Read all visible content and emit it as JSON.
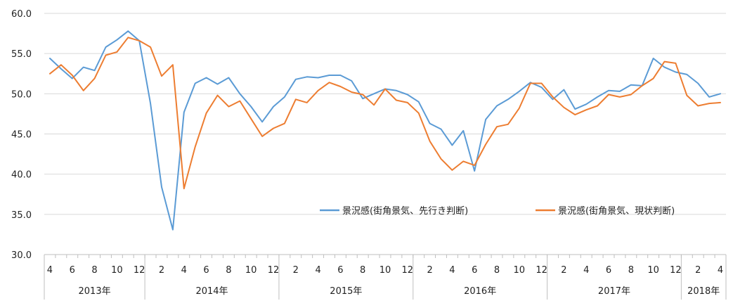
{
  "chart_data": {
    "type": "line",
    "title": "",
    "xlabel": "",
    "ylabel": "",
    "ylim": [
      30.0,
      60.0
    ],
    "y_ticks": [
      "30.0",
      "35.0",
      "40.0",
      "45.0",
      "50.0",
      "55.0",
      "60.0"
    ],
    "grid": true,
    "legend_position": "inside-lower-right",
    "x": [
      "2013-04",
      "2013-05",
      "2013-06",
      "2013-07",
      "2013-08",
      "2013-09",
      "2013-10",
      "2013-11",
      "2013-12",
      "2014-01",
      "2014-02",
      "2014-03",
      "2014-04",
      "2014-05",
      "2014-06",
      "2014-07",
      "2014-08",
      "2014-09",
      "2014-10",
      "2014-11",
      "2014-12",
      "2015-01",
      "2015-02",
      "2015-03",
      "2015-04",
      "2015-05",
      "2015-06",
      "2015-07",
      "2015-08",
      "2015-09",
      "2015-10",
      "2015-11",
      "2015-12",
      "2016-01",
      "2016-02",
      "2016-03",
      "2016-04",
      "2016-05",
      "2016-06",
      "2016-07",
      "2016-08",
      "2016-09",
      "2016-10",
      "2016-11",
      "2016-12",
      "2017-01",
      "2017-02",
      "2017-03",
      "2017-04",
      "2017-05",
      "2017-06",
      "2017-07",
      "2017-08",
      "2017-09",
      "2017-10",
      "2017-11",
      "2017-12",
      "2018-01",
      "2018-02",
      "2018-03",
      "2018-04"
    ],
    "x_tick_labels": [
      "4",
      "6",
      "8",
      "10",
      "12",
      "2",
      "4",
      "6",
      "8",
      "10",
      "12",
      "2",
      "4",
      "6",
      "8",
      "10",
      "12",
      "2",
      "4",
      "6",
      "8",
      "10",
      "12",
      "2",
      "4",
      "6",
      "8",
      "10",
      "12",
      "2",
      "4"
    ],
    "x_tick_months": [
      "2013-04",
      "2013-06",
      "2013-08",
      "2013-10",
      "2013-12",
      "2014-02",
      "2014-04",
      "2014-06",
      "2014-08",
      "2014-10",
      "2014-12",
      "2015-02",
      "2015-04",
      "2015-06",
      "2015-08",
      "2015-10",
      "2015-12",
      "2016-02",
      "2016-04",
      "2016-06",
      "2016-08",
      "2016-10",
      "2016-12",
      "2017-02",
      "2017-04",
      "2017-06",
      "2017-08",
      "2017-10",
      "2017-12",
      "2018-02",
      "2018-04"
    ],
    "year_groups": [
      {
        "label": "2013年",
        "first": "2013-04",
        "last": "2013-12"
      },
      {
        "label": "2014年",
        "first": "2014-01",
        "last": "2014-12"
      },
      {
        "label": "2015年",
        "first": "2015-01",
        "last": "2015-12"
      },
      {
        "label": "2016年",
        "first": "2016-01",
        "last": "2016-12"
      },
      {
        "label": "2017年",
        "first": "2017-01",
        "last": "2017-12"
      },
      {
        "label": "2018年",
        "first": "2018-01",
        "last": "2018-04"
      }
    ],
    "series": [
      {
        "name": "景況感(街角景気、先行き判断)",
        "color": "#5B9BD5",
        "values": [
          54.4,
          53.1,
          51.9,
          53.3,
          52.9,
          55.8,
          56.7,
          57.8,
          56.6,
          48.8,
          38.4,
          33.1,
          47.7,
          51.3,
          52.0,
          51.2,
          52.0,
          50.0,
          48.4,
          46.5,
          48.4,
          49.6,
          51.8,
          52.1,
          52.0,
          52.3,
          52.3,
          51.6,
          49.4,
          50.0,
          50.6,
          50.4,
          49.9,
          49.0,
          46.3,
          45.6,
          43.6,
          45.4,
          40.4,
          46.8,
          48.5,
          49.3,
          50.3,
          51.4,
          50.8,
          49.3,
          50.5,
          48.1,
          48.7,
          49.6,
          50.4,
          50.3,
          51.1,
          51.0,
          54.4,
          53.3,
          52.7,
          52.4,
          51.3,
          49.6,
          50.0
        ]
      },
      {
        "name": "景況感(街角景気、現状判断)",
        "color": "#ED7D31",
        "values": [
          52.5,
          53.6,
          52.3,
          50.4,
          51.9,
          54.8,
          55.2,
          57.0,
          56.6,
          55.8,
          52.2,
          53.6,
          38.2,
          43.4,
          47.6,
          49.8,
          48.4,
          49.1,
          46.9,
          44.7,
          45.7,
          46.3,
          49.3,
          48.9,
          50.4,
          51.4,
          50.9,
          50.2,
          49.9,
          48.6,
          50.6,
          49.2,
          48.9,
          47.6,
          44.1,
          41.9,
          40.5,
          41.6,
          41.1,
          43.7,
          45.9,
          46.2,
          48.2,
          51.3,
          51.3,
          49.6,
          48.3,
          47.4,
          48.0,
          48.5,
          49.9,
          49.6,
          49.9,
          51.0,
          51.9,
          54.0,
          53.8,
          49.8,
          48.5,
          48.8,
          48.9
        ]
      }
    ]
  }
}
